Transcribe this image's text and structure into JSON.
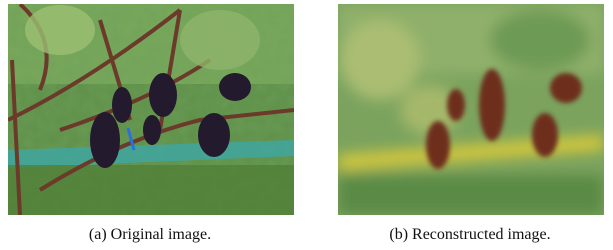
{
  "figure": {
    "captions": [
      "(a) Original image.",
      "(b) Reconstructed image."
    ]
  }
}
